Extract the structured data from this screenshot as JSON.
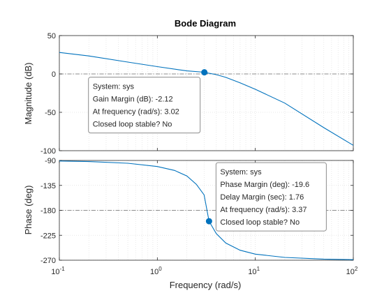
{
  "chart_data": {
    "type": "line",
    "title": "Bode Diagram",
    "xlabel": "Frequency  (rad/s)",
    "x_scale": "log",
    "xlim": [
      0.1,
      100
    ],
    "x_ticks": [
      {
        "value": 0.1,
        "base": "10",
        "exp": "-1"
      },
      {
        "value": 1,
        "base": "10",
        "exp": "0"
      },
      {
        "value": 10,
        "base": "10",
        "exp": "1"
      },
      {
        "value": 100,
        "base": "10",
        "exp": "2"
      }
    ],
    "grid": true,
    "colors": {
      "line": "#0072bd",
      "marker": "#0072bd",
      "ref_line": "#8c8c8c",
      "grid": "#dfdfdf",
      "tooltip_border": "#8c8c8c",
      "tooltip_bg": "#ffffff"
    },
    "panels": [
      {
        "name": "magnitude",
        "ylabel": "Magnitude (dB)",
        "ylim": [
          -100,
          50
        ],
        "y_ticks": [
          "50",
          "0",
          "-50",
          "-100"
        ],
        "y_tick_values": [
          50,
          0,
          -50,
          -100
        ],
        "reference_line": 0,
        "series": [
          {
            "x": [
              0.1,
              0.2,
              0.5,
              1,
              2,
              3,
              3.02,
              4,
              5,
              7,
              10,
              20,
              50,
              100
            ],
            "values": [
              28,
              23.5,
              15.5,
              9.5,
              4,
              2.3,
              2.12,
              -0.9,
              -4.5,
              -11.5,
              -20,
              -38,
              -70,
              -93
            ]
          }
        ],
        "marker": {
          "x": 3.02,
          "y": 2.12
        },
        "tooltip": {
          "lines": [
            "System: sys",
            "Gain Margin (dB): -2.12",
            "At frequency (rad/s): 3.02",
            "Closed loop stable? No"
          ]
        }
      },
      {
        "name": "phase",
        "ylabel": "Phase (deg)",
        "ylim": [
          -270,
          -90
        ],
        "y_ticks": [
          "-90",
          "-135",
          "-180",
          "-225",
          "-270"
        ],
        "y_tick_values": [
          -90,
          -135,
          -180,
          -225,
          -270
        ],
        "reference_line": -180,
        "series": [
          {
            "x": [
              0.1,
              0.2,
              0.5,
              1,
              1.5,
              2,
              2.5,
              3,
              3.37,
              4,
              5,
              7,
              10,
              20,
              50,
              100
            ],
            "values": [
              -91,
              -92,
              -95,
              -101,
              -108,
              -118,
              -133,
              -152,
              -199.6,
              -222,
              -239,
              -252,
              -259,
              -265,
              -268,
              -269
            ]
          }
        ],
        "marker": {
          "x": 3.37,
          "y": -199.6
        },
        "tooltip": {
          "lines": [
            "System: sys",
            "Phase Margin (deg): -19.6",
            "Delay Margin (sec): 1.76",
            "At frequency (rad/s): 3.37",
            "Closed loop stable? No"
          ]
        }
      }
    ]
  }
}
